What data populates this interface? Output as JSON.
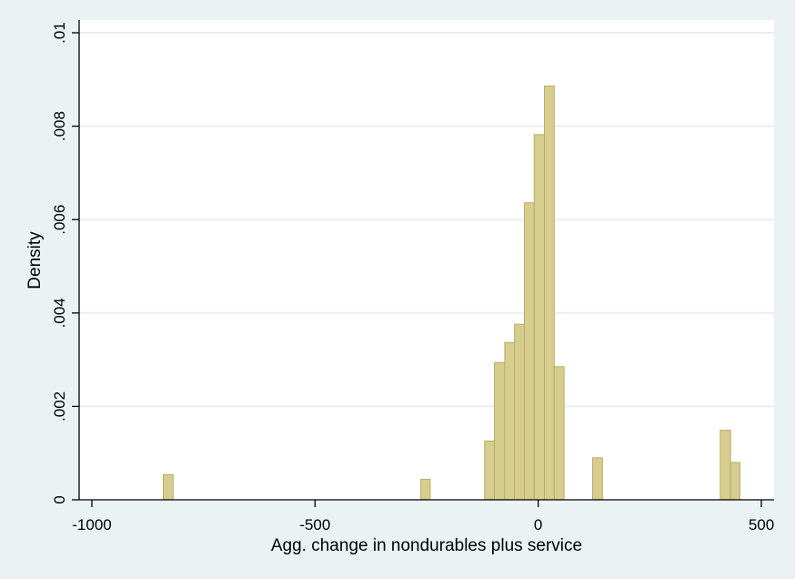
{
  "chart_data": {
    "type": "bar",
    "title": "",
    "xlabel": "Agg. change in nondurables plus service",
    "ylabel": "Density",
    "xlim": [
      -1000,
      500
    ],
    "ylim": [
      0,
      0.01
    ],
    "x_ticks": [
      {
        "value": -1000,
        "label": "-1000"
      },
      {
        "value": -500,
        "label": "-500"
      },
      {
        "value": 0,
        "label": "0"
      },
      {
        "value": 500,
        "label": "500"
      }
    ],
    "y_ticks": [
      {
        "value": 0,
        "label": "0"
      },
      {
        "value": 0.002,
        "label": ".002"
      },
      {
        "value": 0.004,
        "label": ".004"
      },
      {
        "value": 0.006,
        "label": ".006"
      },
      {
        "value": 0.008,
        "label": ".008"
      },
      {
        "value": 0.01,
        "label": ".01"
      }
    ],
    "grid": true,
    "bars": [
      {
        "x0": -840,
        "x1": -818,
        "density": 0.00054
      },
      {
        "x0": -263,
        "x1": -242,
        "density": 0.00044
      },
      {
        "x0": -120,
        "x1": -98,
        "density": 0.00126
      },
      {
        "x0": -98,
        "x1": -75,
        "density": 0.00294
      },
      {
        "x0": -75,
        "x1": -53,
        "density": 0.00337
      },
      {
        "x0": -53,
        "x1": -31,
        "density": 0.00376
      },
      {
        "x0": -31,
        "x1": -9,
        "density": 0.00636
      },
      {
        "x0": -9,
        "x1": 14,
        "density": 0.00782
      },
      {
        "x0": 14,
        "x1": 36,
        "density": 0.00886
      },
      {
        "x0": 36,
        "x1": 58,
        "density": 0.00285
      },
      {
        "x0": 122,
        "x1": 144,
        "density": 0.0009
      },
      {
        "x0": 408,
        "x1": 431,
        "density": 0.00149
      },
      {
        "x0": 431,
        "x1": 452,
        "density": 0.0008
      }
    ],
    "colors": {
      "background": "#eaf2f3",
      "plot_area": "#ffffff",
      "bar_fill": "#d6cd8e",
      "bar_stroke": "#b8ad68",
      "grid": "#e9eef0",
      "axis": "#000000"
    }
  }
}
